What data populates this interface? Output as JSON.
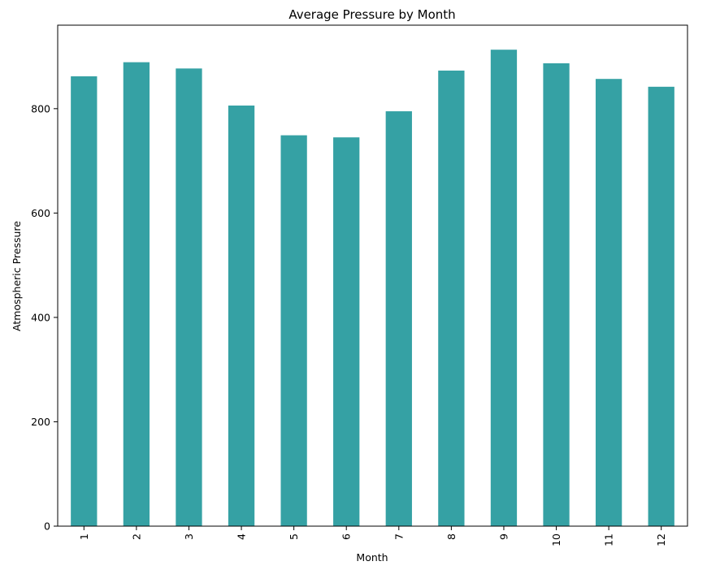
{
  "chart_data": {
    "type": "bar",
    "title": "Average Pressure by Month",
    "xlabel": "Month",
    "ylabel": "Atmospheric Pressure",
    "categories": [
      "1",
      "2",
      "3",
      "4",
      "5",
      "6",
      "7",
      "8",
      "9",
      "10",
      "11",
      "12"
    ],
    "values": [
      862,
      889,
      877,
      806,
      749,
      745,
      795,
      873,
      913,
      887,
      857,
      842
    ],
    "ylim": [
      0,
      960
    ],
    "yticks": [
      0,
      200,
      400,
      600,
      800
    ],
    "grid": false,
    "legend": "none",
    "bar_color": "#35a1a4"
  }
}
